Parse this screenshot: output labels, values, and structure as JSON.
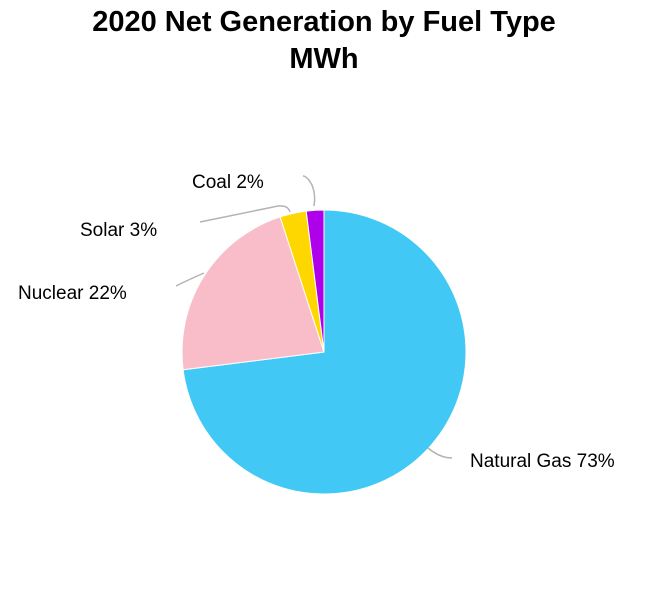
{
  "chart_data": {
    "type": "pie",
    "title": "2020 Net Generation by Fuel Type",
    "subtitle": "MWh",
    "slices": [
      {
        "name": "Natural Gas",
        "percent": 73,
        "label": "Natural Gas 73%",
        "color": "#41C8F5"
      },
      {
        "name": "Nuclear",
        "percent": 22,
        "label": "Nuclear 22%",
        "color": "#F9BDCA"
      },
      {
        "name": "Solar",
        "percent": 3,
        "label": "Solar 3%",
        "color": "#FFD700"
      },
      {
        "name": "Coal",
        "percent": 2,
        "label": "Coal 2%",
        "color": "#AE00EB"
      }
    ],
    "start_angle_deg": 0,
    "direction": "clockwise",
    "legend": "none"
  }
}
